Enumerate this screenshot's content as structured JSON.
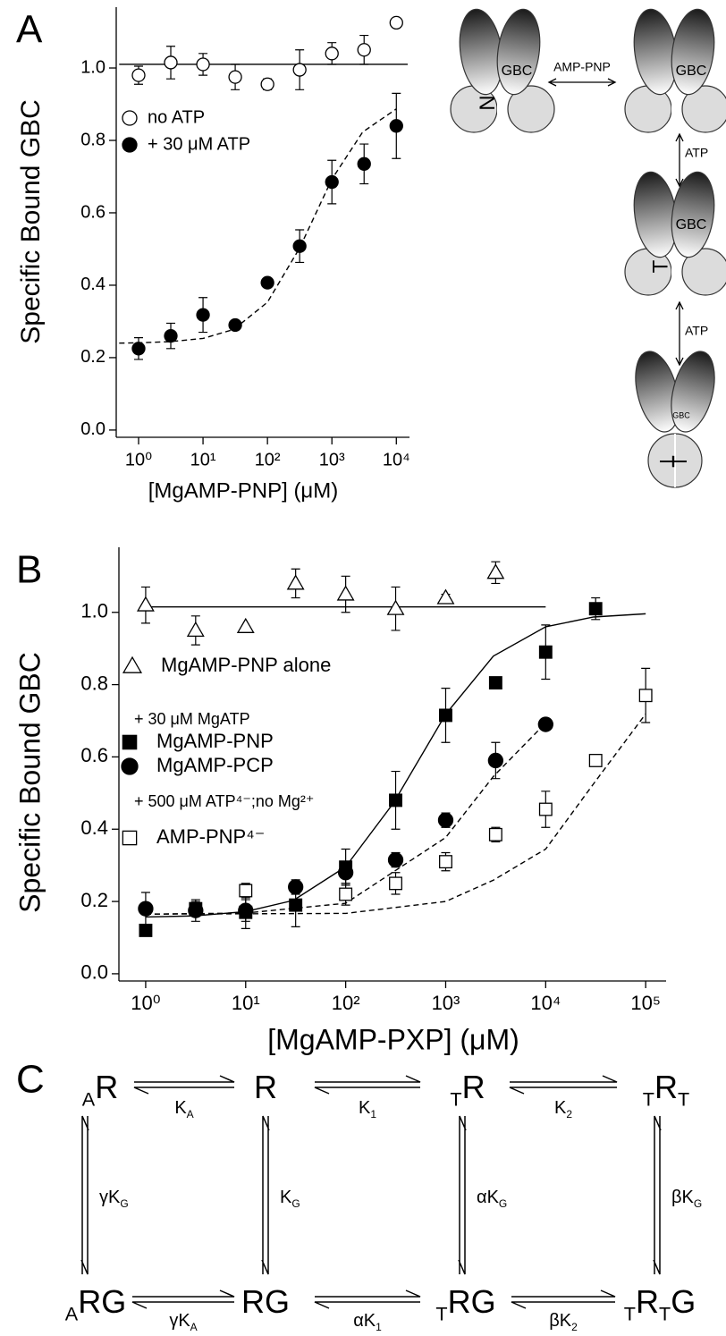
{
  "panel_labels": [
    "A",
    "B",
    "C"
  ],
  "chart_data": [
    {
      "type": "scatter",
      "x_label": "[MgAMP-PNP] (μM)",
      "y_label": "Specific Bound GBC",
      "log_x": true,
      "xlim": [
        0.45,
        16000
      ],
      "ylim": [
        -0.02,
        1.168
      ],
      "xticks": [
        {
          "value": 1,
          "label": "10⁰"
        },
        {
          "value": 10,
          "label": "10¹"
        },
        {
          "value": 100,
          "label": "10²"
        },
        {
          "value": 1000,
          "label": "10³"
        },
        {
          "value": 10000,
          "label": "10⁴"
        }
      ],
      "yticks": [
        {
          "value": 0,
          "label": "0.0"
        },
        0.2,
        0.4,
        0.6,
        0.8,
        {
          "value": 1,
          "label": "1.0"
        }
      ],
      "series": [
        {
          "name": "no ATP",
          "color": "#000000",
          "marker": "circle",
          "filled": false,
          "x": [
            1,
            3.16,
            10,
            31.6,
            100,
            316,
            1000,
            3160,
            10000
          ],
          "values": [
            0.98,
            1.015,
            1.01,
            0.975,
            0.955,
            0.995,
            1.04,
            1.05,
            1.125
          ],
          "errors": [
            0.025,
            0.045,
            0.03,
            0.035,
            0.015,
            0.055,
            0.03,
            0.04,
            null
          ]
        },
        {
          "name": "+ 30 μM ATP",
          "color": "#000000",
          "marker": "circle",
          "filled": true,
          "x": [
            1,
            3.16,
            10,
            31.6,
            100,
            316,
            1000,
            3160,
            10000
          ],
          "values": [
            0.225,
            0.26,
            0.318,
            0.29,
            0.407,
            0.508,
            0.685,
            0.735,
            0.84
          ],
          "errors": [
            0.03,
            0.035,
            0.048,
            0.01,
            null,
            0.045,
            0.06,
            0.055,
            0.09
          ]
        }
      ],
      "fits": [
        {
          "dash": false,
          "x": [
            0.5,
            15000
          ],
          "values": [
            1.01,
            1.01
          ]
        },
        {
          "dash": true,
          "x": [
            0.5,
            1,
            3,
            10,
            30,
            100,
            316,
            1000,
            3000,
            10000
          ],
          "values": [
            0.24,
            0.241,
            0.244,
            0.253,
            0.278,
            0.353,
            0.503,
            0.693,
            0.823,
            0.887
          ]
        }
      ],
      "legend_headings": []
    },
    {
      "type": "scatter",
      "x_label": "[MgAMP-PXP] (μM)",
      "y_label": "Specific Bound GBC",
      "log_x": true,
      "xlim": [
        0.54,
        160000
      ],
      "ylim": [
        -0.02,
        1.18
      ],
      "xticks": [
        {
          "value": 1,
          "label": "10⁰"
        },
        {
          "value": 10,
          "label": "10¹"
        },
        {
          "value": 100,
          "label": "10²"
        },
        {
          "value": 1000,
          "label": "10³"
        },
        {
          "value": 10000,
          "label": "10⁴"
        },
        {
          "value": 100000,
          "label": "10⁵"
        }
      ],
      "yticks": [
        {
          "value": 0,
          "label": "0.0"
        },
        0.2,
        0.4,
        0.6,
        0.8,
        {
          "value": 1,
          "label": "1.0"
        }
      ],
      "series": [
        {
          "name": "MgAMP-PNP alone",
          "color": "#000000",
          "marker": "triangle",
          "filled": false,
          "x": [
            1,
            3.16,
            10,
            31.6,
            100,
            316,
            1000,
            3160
          ],
          "values": [
            1.02,
            0.95,
            0.96,
            1.08,
            1.05,
            1.01,
            1.04,
            1.11
          ],
          "errors": [
            0.05,
            0.04,
            null,
            0.04,
            0.05,
            0.06,
            0.01,
            0.03
          ]
        },
        {
          "name": "MgAMP-PNP",
          "color": "#000000",
          "marker": "square",
          "filled": true,
          "x": [
            1,
            3.16,
            10,
            31.6,
            100,
            316,
            1000,
            3160,
            10000,
            31600
          ],
          "values": [
            0.12,
            0.18,
            0.17,
            0.19,
            0.295,
            0.48,
            0.715,
            0.805,
            0.89,
            1.01
          ],
          "errors": [
            null,
            0.02,
            0.045,
            0.06,
            0.05,
            0.08,
            0.075,
            null,
            0.075,
            0.03
          ]
        },
        {
          "name": "MgAMP-PCP",
          "color": "#000000",
          "marker": "circle",
          "filled": true,
          "x": [
            1,
            3.16,
            10,
            31.6,
            100,
            316,
            1000,
            3160,
            10000
          ],
          "values": [
            0.18,
            0.175,
            0.175,
            0.24,
            0.28,
            0.315,
            0.425,
            0.59,
            0.69
          ],
          "errors": [
            0.045,
            0.03,
            0.03,
            0.02,
            0.03,
            0.02,
            0.02,
            0.05,
            null
          ]
        },
        {
          "name": "AMP-PNP⁴⁻",
          "color": "#000000",
          "marker": "square",
          "filled": false,
          "x": [
            10,
            100,
            316,
            1000,
            3160,
            10000,
            31600,
            100000
          ],
          "values": [
            0.23,
            0.22,
            0.25,
            0.31,
            0.385,
            0.455,
            0.59,
            0.77
          ],
          "errors": [
            0.02,
            0.03,
            0.03,
            0.025,
            0.02,
            0.05,
            null,
            0.075
          ]
        }
      ],
      "fits": [
        {
          "dash": false,
          "x": [
            1,
            10000
          ],
          "values": [
            1.015,
            1.015
          ]
        },
        {
          "dash": false,
          "x": [
            1,
            3,
            10,
            30,
            100,
            300,
            1000,
            3000,
            10000,
            30000,
            100000
          ],
          "values": [
            0.157,
            0.16,
            0.172,
            0.203,
            0.296,
            0.472,
            0.718,
            0.879,
            0.96,
            0.987,
            0.996
          ]
        },
        {
          "dash": true,
          "x": [
            1,
            10,
            100,
            1000,
            3000,
            10000
          ],
          "values": [
            0.165,
            0.168,
            0.195,
            0.377,
            0.546,
            0.694
          ]
        },
        {
          "dash": true,
          "x": [
            1,
            100,
            1000,
            3000,
            10000,
            30000,
            100000
          ],
          "values": [
            0.165,
            0.167,
            0.2,
            0.259,
            0.345,
            0.525,
            0.719
          ]
        }
      ],
      "legend_headings": [
        "+ 30 μM MgATP",
        "+ 500 μM ATP⁴⁻;no Mg²⁺"
      ]
    }
  ],
  "diagram": {
    "gbc_labels": [
      "GBC",
      "GBC",
      "GBC",
      "GBC"
    ],
    "arrow_labels": [
      "AMP-PNP",
      "ATP",
      "ATP"
    ],
    "domain_labels": [
      "N",
      "T",
      "T",
      "T"
    ]
  },
  "scheme": {
    "nodes_top": [
      [
        {
          "text": "A",
          "sub": true
        },
        {
          "text": "R"
        }
      ],
      [
        {
          "text": "R"
        }
      ],
      [
        {
          "text": "T",
          "sub": true
        },
        {
          "text": "R"
        }
      ],
      [
        {
          "text": "T",
          "sub": true
        },
        {
          "text": "R"
        },
        {
          "text": "T",
          "sub": true
        }
      ]
    ],
    "nodes_bottom": [
      [
        {
          "text": "A",
          "sub": true
        },
        {
          "text": "RG"
        }
      ],
      [
        {
          "text": "RG"
        }
      ],
      [
        {
          "text": "T",
          "sub": true
        },
        {
          "text": "RG"
        }
      ],
      [
        {
          "text": "T",
          "sub": true
        },
        {
          "text": "R"
        },
        {
          "text": "T",
          "sub": true
        },
        {
          "text": "G"
        }
      ]
    ],
    "constants_top": [
      [
        {
          "text": "K"
        },
        {
          "text": "A",
          "sub": true
        }
      ],
      [
        {
          "text": "K"
        },
        {
          "text": "1",
          "sub": true
        }
      ],
      [
        {
          "text": "K"
        },
        {
          "text": "2",
          "sub": true
        }
      ]
    ],
    "constants_bottom": [
      [
        {
          "text": "γK"
        },
        {
          "text": "A",
          "sub": true
        }
      ],
      [
        {
          "text": "αK"
        },
        {
          "text": "1",
          "sub": true
        }
      ],
      [
        {
          "text": "βK"
        },
        {
          "text": "2",
          "sub": true
        }
      ]
    ],
    "constants_vertical": [
      [
        {
          "text": "γK"
        },
        {
          "text": "G",
          "sub": true
        }
      ],
      [
        {
          "text": "K"
        },
        {
          "text": "G",
          "sub": true
        }
      ],
      [
        {
          "text": "αK"
        },
        {
          "text": "G",
          "sub": true
        }
      ],
      [
        {
          "text": "βK"
        },
        {
          "text": "G",
          "sub": true
        }
      ]
    ]
  }
}
